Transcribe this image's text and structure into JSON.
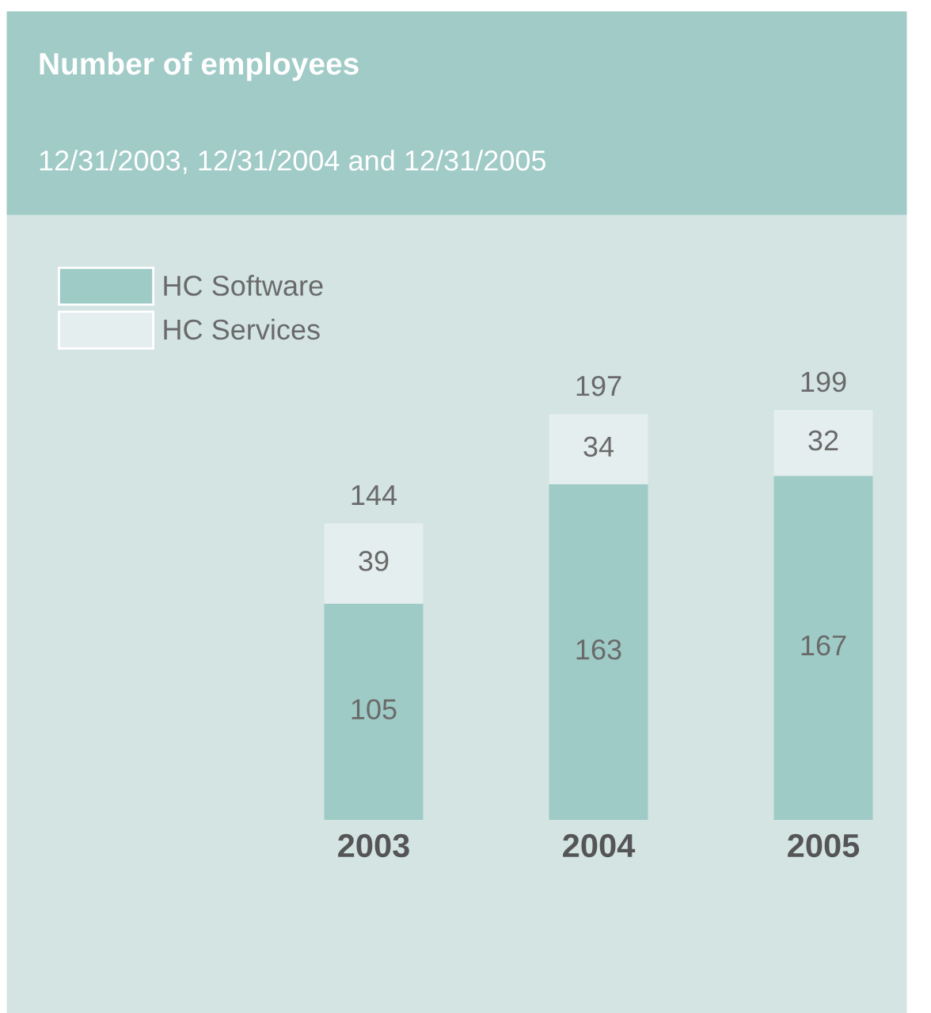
{
  "chart_data": {
    "type": "bar",
    "title": "Number of employees",
    "subtitle": "12/31/2003, 12/31/2004 and 12/31/2005",
    "categories": [
      "2003",
      "2004",
      "2005"
    ],
    "stacked": true,
    "series": [
      {
        "name": "HC Software",
        "color": "#9ecbc6",
        "values": [
          105,
          163,
          167
        ]
      },
      {
        "name": "HC Services",
        "color": "#e4eeee",
        "values": [
          39,
          34,
          32
        ]
      }
    ],
    "data_labels": true,
    "totals": [
      "144",
      "197",
      "199"
    ],
    "legend": "top left",
    "grid": false,
    "tick_labels": "x"
  }
}
